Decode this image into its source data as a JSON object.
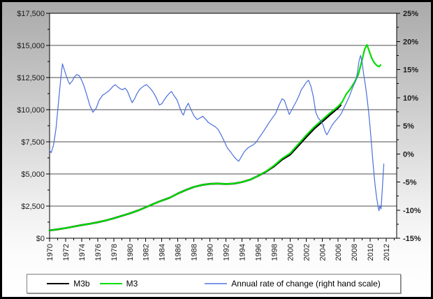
{
  "figure": {
    "kind": "money-supply line chart",
    "title": "",
    "border_color": "#000000"
  },
  "colors": {
    "plot_background": "#ffffff",
    "gridline": "#4d4d4d",
    "axis": "#000000",
    "left_axis_text": "#1c1c1c",
    "right_axis_text": "#3a55d6",
    "m3b_line": "#000000",
    "m3_line": "#00dd00",
    "rate_line": "#4a6fdb"
  },
  "legend": {
    "items": [
      {
        "label": "M3b",
        "color": "#000000"
      },
      {
        "label": "M3",
        "color": "#00dd00"
      },
      {
        "label": "Annual rate of change (right hand scale)",
        "color": "#7b96e8"
      }
    ]
  },
  "chart_data": {
    "type": "line",
    "title": "",
    "grid": "horizontal",
    "legend_position": "bottom",
    "x_axis": {
      "range": [
        1970,
        2013.3
      ],
      "minor_tick_step_years": 1,
      "ticks": [
        1970,
        1972,
        1974,
        1976,
        1978,
        1980,
        1982,
        1984,
        1986,
        1988,
        1990,
        1992,
        1994,
        1996,
        1998,
        2000,
        2002,
        2004,
        2006,
        2008,
        2010,
        2012
      ],
      "tick_labels": [
        "1970",
        "1972",
        "1974",
        "1976",
        "1978",
        "1980",
        "1982",
        "1984",
        "1986",
        "1988",
        "1990",
        "1992",
        "1994",
        "1996",
        "1998",
        "2000",
        "2002",
        "2004",
        "2006",
        "2008",
        "2010",
        "2012"
      ]
    },
    "y_left": {
      "range": [
        0,
        17500
      ],
      "tick_values": [
        0,
        2500,
        5000,
        7500,
        10000,
        12500,
        15000,
        17500
      ],
      "tick_labels": [
        "$0",
        "$2,500",
        "$5,000",
        "$7,500",
        "$10,000",
        "$12,500",
        "$15,000",
        "$17,500"
      ],
      "minor_step": 1250,
      "units": "billions of dollars"
    },
    "y_right": {
      "range": [
        -15,
        25
      ],
      "tick_values": [
        -15,
        -10,
        -5,
        0,
        5,
        10,
        15,
        20,
        25
      ],
      "tick_labels": [
        "-15%",
        "-10%",
        "-5%",
        "0%",
        "5%",
        "10%",
        "15%",
        "20%",
        "25%"
      ],
      "minor_step": 2.5,
      "color": "#3a55d6",
      "units": "percent per year"
    },
    "series": [
      {
        "name": "M3b",
        "axis": "left",
        "color": "#000000",
        "width": 2.6,
        "points": [
          [
            1970,
            610
          ],
          [
            1971,
            690
          ],
          [
            1972,
            790
          ],
          [
            1973,
            900
          ],
          [
            1974,
            1020
          ],
          [
            1975,
            1120
          ],
          [
            1976,
            1240
          ],
          [
            1977,
            1380
          ],
          [
            1978,
            1550
          ],
          [
            1979,
            1740
          ],
          [
            1980,
            1930
          ],
          [
            1981,
            2150
          ],
          [
            1982,
            2410
          ],
          [
            1983,
            2680
          ],
          [
            1984,
            2930
          ],
          [
            1985,
            3150
          ],
          [
            1986,
            3480
          ],
          [
            1987,
            3750
          ],
          [
            1988,
            3990
          ],
          [
            1989,
            4140
          ],
          [
            1990,
            4230
          ],
          [
            1991,
            4250
          ],
          [
            1992,
            4220
          ],
          [
            1993,
            4250
          ],
          [
            1994,
            4370
          ],
          [
            1995,
            4550
          ],
          [
            1996,
            4850
          ],
          [
            1997,
            5180
          ],
          [
            1998,
            5600
          ],
          [
            1999,
            6120
          ],
          [
            2000,
            6500
          ],
          [
            2001,
            7180
          ],
          [
            2002,
            7870
          ],
          [
            2003,
            8520
          ],
          [
            2004,
            9070
          ],
          [
            2005,
            9620
          ],
          [
            2006,
            10150
          ],
          [
            2006.3,
            10350
          ]
        ]
      },
      {
        "name": "M3",
        "axis": "left",
        "color": "#00dd00",
        "width": 2.2,
        "points": [
          [
            1970,
            610
          ],
          [
            1971,
            690
          ],
          [
            1972,
            790
          ],
          [
            1973,
            900
          ],
          [
            1974,
            1020
          ],
          [
            1975,
            1120
          ],
          [
            1976,
            1240
          ],
          [
            1977,
            1380
          ],
          [
            1978,
            1550
          ],
          [
            1979,
            1740
          ],
          [
            1980,
            1930
          ],
          [
            1981,
            2150
          ],
          [
            1982,
            2410
          ],
          [
            1983,
            2680
          ],
          [
            1984,
            2930
          ],
          [
            1985,
            3150
          ],
          [
            1986,
            3480
          ],
          [
            1987,
            3750
          ],
          [
            1988,
            3990
          ],
          [
            1989,
            4140
          ],
          [
            1990,
            4230
          ],
          [
            1991,
            4250
          ],
          [
            1992,
            4220
          ],
          [
            1993,
            4250
          ],
          [
            1994,
            4370
          ],
          [
            1995,
            4550
          ],
          [
            1996,
            4850
          ],
          [
            1997,
            5200
          ],
          [
            1998,
            5650
          ],
          [
            1999,
            6200
          ],
          [
            2000,
            6600
          ],
          [
            2001,
            7300
          ],
          [
            2002,
            8000
          ],
          [
            2003,
            8650
          ],
          [
            2004,
            9200
          ],
          [
            2005,
            9750
          ],
          [
            2006,
            10250
          ],
          [
            2006.5,
            10600
          ],
          [
            2007,
            11200
          ],
          [
            2007.5,
            11600
          ],
          [
            2008,
            12100
          ],
          [
            2008.5,
            12700
          ],
          [
            2009,
            13900
          ],
          [
            2009.3,
            14700
          ],
          [
            2009.6,
            15050
          ],
          [
            2009.9,
            14500
          ],
          [
            2010.2,
            14000
          ],
          [
            2010.5,
            13650
          ],
          [
            2010.8,
            13450
          ],
          [
            2011.1,
            13350
          ],
          [
            2011.3,
            13480
          ]
        ]
      },
      {
        "name": "Annual rate of change (right hand scale)",
        "axis": "right",
        "color": "#4a6fdb",
        "width": 1.2,
        "points": [
          [
            1970,
            0.6
          ],
          [
            1970.2,
            0.2
          ],
          [
            1970.5,
            1.6
          ],
          [
            1970.8,
            4.5
          ],
          [
            1971.1,
            9.0
          ],
          [
            1971.4,
            13.5
          ],
          [
            1971.6,
            16.0
          ],
          [
            1971.8,
            15.1
          ],
          [
            1972,
            14.2
          ],
          [
            1972.3,
            13.0
          ],
          [
            1972.5,
            12.4
          ],
          [
            1972.8,
            12.9
          ],
          [
            1973.1,
            13.7
          ],
          [
            1973.4,
            14.1
          ],
          [
            1973.7,
            13.9
          ],
          [
            1974,
            13.1
          ],
          [
            1974.3,
            12.0
          ],
          [
            1974.7,
            10.2
          ],
          [
            1975,
            8.7
          ],
          [
            1975.4,
            7.4
          ],
          [
            1975.8,
            8.1
          ],
          [
            1976.2,
            9.6
          ],
          [
            1976.6,
            10.4
          ],
          [
            1976.9,
            10.7
          ],
          [
            1977.3,
            11.1
          ],
          [
            1977.6,
            11.5
          ],
          [
            1977.9,
            12.0
          ],
          [
            1978.2,
            12.3
          ],
          [
            1978.5,
            11.9
          ],
          [
            1978.8,
            11.6
          ],
          [
            1979.1,
            11.4
          ],
          [
            1979.4,
            11.7
          ],
          [
            1979.7,
            11.2
          ],
          [
            1980,
            10.1
          ],
          [
            1980.3,
            9.1
          ],
          [
            1980.6,
            9.8
          ],
          [
            1980.9,
            10.7
          ],
          [
            1981.2,
            11.4
          ],
          [
            1981.5,
            11.8
          ],
          [
            1981.8,
            12.1
          ],
          [
            1982.1,
            12.3
          ],
          [
            1982.4,
            11.9
          ],
          [
            1982.7,
            11.4
          ],
          [
            1983,
            10.8
          ],
          [
            1983.3,
            10.0
          ],
          [
            1983.7,
            8.7
          ],
          [
            1984,
            8.9
          ],
          [
            1984.3,
            9.6
          ],
          [
            1984.6,
            10.2
          ],
          [
            1984.9,
            10.7
          ],
          [
            1985.2,
            11.1
          ],
          [
            1985.5,
            10.4
          ],
          [
            1985.9,
            9.6
          ],
          [
            1986.2,
            8.4
          ],
          [
            1986.5,
            7.3
          ],
          [
            1986.7,
            6.9
          ],
          [
            1987,
            8.2
          ],
          [
            1987.3,
            9.0
          ],
          [
            1987.6,
            8.0
          ],
          [
            1988,
            6.8
          ],
          [
            1988.4,
            6.1
          ],
          [
            1988.8,
            6.4
          ],
          [
            1989.1,
            6.7
          ],
          [
            1989.5,
            6.1
          ],
          [
            1989.8,
            5.6
          ],
          [
            1990.2,
            5.2
          ],
          [
            1990.6,
            4.9
          ],
          [
            1991,
            4.4
          ],
          [
            1991.4,
            3.4
          ],
          [
            1991.8,
            2.2
          ],
          [
            1992.2,
            1.0
          ],
          [
            1992.6,
            0.3
          ],
          [
            1993,
            -0.5
          ],
          [
            1993.4,
            -1.1
          ],
          [
            1993.6,
            -1.3
          ],
          [
            1994,
            -0.3
          ],
          [
            1994.3,
            0.4
          ],
          [
            1994.7,
            1.0
          ],
          [
            1995,
            1.3
          ],
          [
            1995.4,
            1.6
          ],
          [
            1995.8,
            2.1
          ],
          [
            1996.2,
            3.0
          ],
          [
            1996.6,
            3.8
          ],
          [
            1997,
            4.7
          ],
          [
            1997.4,
            5.6
          ],
          [
            1997.8,
            6.4
          ],
          [
            1998.2,
            7.2
          ],
          [
            1998.6,
            8.6
          ],
          [
            1999,
            9.8
          ],
          [
            1999.3,
            9.5
          ],
          [
            1999.6,
            8.2
          ],
          [
            1999.9,
            7.0
          ],
          [
            2000.2,
            7.8
          ],
          [
            2000.5,
            8.6
          ],
          [
            2000.8,
            9.4
          ],
          [
            2001.1,
            10.3
          ],
          [
            2001.4,
            11.4
          ],
          [
            2001.7,
            12.0
          ],
          [
            2002,
            12.7
          ],
          [
            2002.3,
            13.1
          ],
          [
            2002.6,
            12.0
          ],
          [
            2002.9,
            10.2
          ],
          [
            2003.2,
            7.4
          ],
          [
            2003.5,
            6.4
          ],
          [
            2003.8,
            5.9
          ],
          [
            2004.1,
            5.2
          ],
          [
            2004.4,
            3.9
          ],
          [
            2004.6,
            3.4
          ],
          [
            2004.9,
            4.2
          ],
          [
            2005.2,
            5.0
          ],
          [
            2005.5,
            5.6
          ],
          [
            2005.8,
            6.1
          ],
          [
            2006.1,
            6.6
          ],
          [
            2006.4,
            7.2
          ],
          [
            2006.7,
            8.1
          ],
          [
            2007,
            9.0
          ],
          [
            2007.3,
            9.9
          ],
          [
            2007.6,
            11.0
          ],
          [
            2007.9,
            12.1
          ],
          [
            2008.2,
            13.0
          ],
          [
            2008.4,
            14.5
          ],
          [
            2008.6,
            16.5
          ],
          [
            2008.8,
            17.5
          ],
          [
            2009,
            16.2
          ],
          [
            2009.2,
            14.0
          ],
          [
            2009.4,
            12.2
          ],
          [
            2009.6,
            10.0
          ],
          [
            2009.8,
            7.5
          ],
          [
            2010,
            4.5
          ],
          [
            2010.2,
            1.0
          ],
          [
            2010.4,
            -2.5
          ],
          [
            2010.6,
            -5.5
          ],
          [
            2010.8,
            -7.8
          ],
          [
            2011,
            -9.5
          ],
          [
            2011.1,
            -10.1
          ],
          [
            2011.2,
            -9.2
          ],
          [
            2011.35,
            -9.8
          ],
          [
            2011.5,
            -6.5
          ],
          [
            2011.6,
            -4.0
          ],
          [
            2011.7,
            -1.8
          ]
        ]
      }
    ]
  }
}
